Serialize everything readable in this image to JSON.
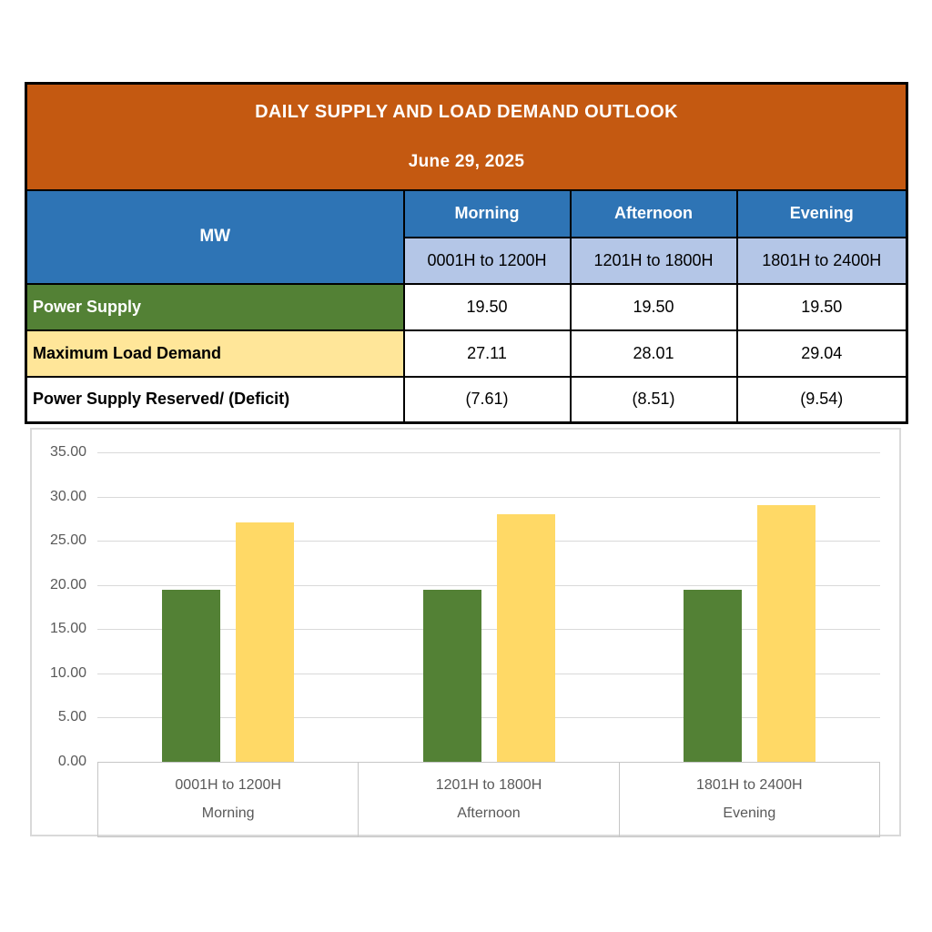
{
  "report": {
    "title": "DAILY SUPPLY AND LOAD DEMAND OUTLOOK",
    "date": "June 29, 2025"
  },
  "table": {
    "unit_label": "MW",
    "period_headers": [
      "Morning",
      "Afternoon",
      "Evening"
    ],
    "time_headers": [
      "0001H to 1200H",
      "1201H to 1800H",
      "1801H to 2400H"
    ],
    "rows": [
      {
        "label": "Power Supply",
        "style": "green",
        "values": [
          "19.50",
          "19.50",
          "19.50"
        ]
      },
      {
        "label": "Maximum Load Demand",
        "style": "yellow",
        "values": [
          "27.11",
          "28.01",
          "29.04"
        ]
      },
      {
        "label": "Power Supply Reserved/ (Deficit)",
        "style": "plain",
        "values": [
          "(7.61)",
          "(8.51)",
          "(9.54)"
        ]
      }
    ]
  },
  "chart_data": {
    "type": "bar",
    "title": "",
    "xlabel": "",
    "ylabel": "",
    "categories": [
      {
        "time": "0001H to 1200H",
        "period": "Morning"
      },
      {
        "time": "1201H to 1800H",
        "period": "Afternoon"
      },
      {
        "time": "1801H to 2400H",
        "period": "Evening"
      }
    ],
    "series": [
      {
        "name": "Power Supply",
        "color": "#538135",
        "values": [
          19.5,
          19.5,
          19.5
        ]
      },
      {
        "name": "Maximum Load Demand",
        "color": "#FFD966",
        "values": [
          27.11,
          28.01,
          29.04
        ]
      }
    ],
    "ylim": [
      0,
      35
    ],
    "ytick_step": 5,
    "ytick_decimals": 2,
    "grid": true,
    "legend_position": "none"
  },
  "colors": {
    "header_orange": "#C45911",
    "header_blue": "#2E74B5",
    "subheader_light_blue": "#B4C6E7",
    "supply_green": "#538135",
    "demand_yellow_row": "#FFE699",
    "bar_green": "#538135",
    "bar_yellow": "#FFD966",
    "gridline_gray": "#D9D9D9",
    "axis_text_gray": "#595959",
    "table_border": "#000000"
  }
}
